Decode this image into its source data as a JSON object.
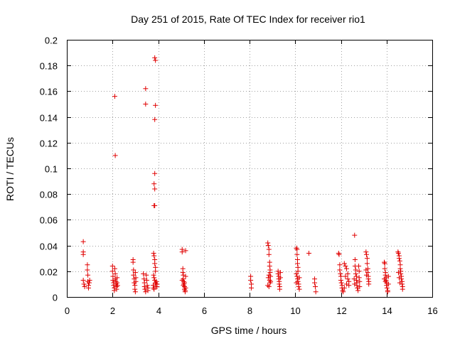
{
  "chart_data": {
    "type": "scatter",
    "title": "Day 251 of 2015, Rate Of TEC Index for receiver rio1",
    "xlabel": "GPS time / hours",
    "ylabel": "ROTI / TECUs",
    "xlim": [
      0,
      16
    ],
    "ylim": [
      0,
      0.2
    ],
    "xticks": [
      0,
      2,
      4,
      6,
      8,
      10,
      12,
      14,
      16
    ],
    "yticks": [
      0,
      0.02,
      0.04,
      0.06,
      0.08,
      0.1,
      0.12,
      0.14,
      0.16,
      0.18,
      0.2
    ],
    "xtick_labels": [
      "0",
      "2",
      "4",
      "6",
      "8",
      "10",
      "12",
      "14",
      "16"
    ],
    "ytick_labels": [
      "0",
      "0.02",
      "0.04",
      "0.06",
      "0.08",
      "0.1",
      "0.12",
      "0.14",
      "0.16",
      "0.18",
      "0.2"
    ],
    "grid": true,
    "marker": "+",
    "color": "#e00000",
    "series": [
      {
        "name": "rio1",
        "points": [
          [
            0.72,
            0.043
          ],
          [
            0.72,
            0.035
          ],
          [
            0.72,
            0.033
          ],
          [
            0.72,
            0.013
          ],
          [
            0.75,
            0.01
          ],
          [
            0.78,
            0.008
          ],
          [
            0.9,
            0.025
          ],
          [
            0.9,
            0.021
          ],
          [
            0.92,
            0.017
          ],
          [
            0.92,
            0.012
          ],
          [
            0.95,
            0.009
          ],
          [
            0.95,
            0.007
          ],
          [
            0.98,
            0.011
          ],
          [
            1.0,
            0.013
          ],
          [
            2.1,
            0.156
          ],
          [
            2.12,
            0.11
          ],
          [
            2.0,
            0.024
          ],
          [
            2.0,
            0.02
          ],
          [
            2.02,
            0.016
          ],
          [
            2.02,
            0.013
          ],
          [
            2.05,
            0.011
          ],
          [
            2.05,
            0.009
          ],
          [
            2.08,
            0.007
          ],
          [
            2.08,
            0.005
          ],
          [
            2.1,
            0.022
          ],
          [
            2.12,
            0.018
          ],
          [
            2.12,
            0.014
          ],
          [
            2.15,
            0.012
          ],
          [
            2.15,
            0.01
          ],
          [
            2.18,
            0.008
          ],
          [
            2.18,
            0.006
          ],
          [
            2.2,
            0.015
          ],
          [
            2.2,
            0.011
          ],
          [
            2.22,
            0.009
          ],
          [
            2.9,
            0.029
          ],
          [
            2.9,
            0.027
          ],
          [
            2.92,
            0.021
          ],
          [
            2.92,
            0.017
          ],
          [
            2.95,
            0.014
          ],
          [
            2.95,
            0.011
          ],
          [
            2.98,
            0.009
          ],
          [
            2.98,
            0.006
          ],
          [
            3.0,
            0.004
          ],
          [
            3.0,
            0.019
          ],
          [
            3.02,
            0.015
          ],
          [
            3.02,
            0.012
          ],
          [
            3.45,
            0.162
          ],
          [
            3.45,
            0.15
          ],
          [
            3.35,
            0.018
          ],
          [
            3.38,
            0.014
          ],
          [
            3.4,
            0.011
          ],
          [
            3.4,
            0.008
          ],
          [
            3.42,
            0.006
          ],
          [
            3.45,
            0.004
          ],
          [
            3.48,
            0.017
          ],
          [
            3.5,
            0.013
          ],
          [
            3.52,
            0.009
          ],
          [
            3.55,
            0.007
          ],
          [
            3.55,
            0.005
          ],
          [
            3.85,
            0.186
          ],
          [
            3.88,
            0.184
          ],
          [
            3.88,
            0.149
          ],
          [
            3.85,
            0.138
          ],
          [
            3.85,
            0.096
          ],
          [
            3.82,
            0.088
          ],
          [
            3.85,
            0.084
          ],
          [
            3.82,
            0.071
          ],
          [
            3.85,
            0.071
          ],
          [
            3.8,
            0.034
          ],
          [
            3.82,
            0.032
          ],
          [
            3.85,
            0.029
          ],
          [
            3.85,
            0.026
          ],
          [
            3.88,
            0.023
          ],
          [
            3.88,
            0.02
          ],
          [
            3.8,
            0.017
          ],
          [
            3.82,
            0.015
          ],
          [
            3.85,
            0.013
          ],
          [
            3.88,
            0.011
          ],
          [
            3.9,
            0.01
          ],
          [
            3.9,
            0.008
          ],
          [
            3.78,
            0.009
          ],
          [
            3.8,
            0.007
          ],
          [
            3.82,
            0.006
          ],
          [
            3.92,
            0.012
          ],
          [
            3.95,
            0.01
          ],
          [
            3.95,
            0.008
          ],
          [
            5.05,
            0.037
          ],
          [
            5.05,
            0.035
          ],
          [
            5.08,
            0.022
          ],
          [
            5.08,
            0.019
          ],
          [
            5.1,
            0.017
          ],
          [
            5.1,
            0.014
          ],
          [
            5.12,
            0.012
          ],
          [
            5.12,
            0.01
          ],
          [
            5.15,
            0.008
          ],
          [
            5.15,
            0.006
          ],
          [
            5.18,
            0.005
          ],
          [
            5.18,
            0.004
          ],
          [
            5.2,
            0.036
          ],
          [
            5.2,
            0.016
          ],
          [
            5.05,
            0.013
          ],
          [
            5.1,
            0.009
          ],
          [
            5.15,
            0.011
          ],
          [
            5.2,
            0.007
          ],
          [
            8.05,
            0.016
          ],
          [
            8.05,
            0.013
          ],
          [
            8.08,
            0.01
          ],
          [
            8.08,
            0.007
          ],
          [
            8.8,
            0.042
          ],
          [
            8.82,
            0.04
          ],
          [
            8.85,
            0.037
          ],
          [
            8.85,
            0.033
          ],
          [
            8.88,
            0.027
          ],
          [
            8.88,
            0.024
          ],
          [
            8.9,
            0.021
          ],
          [
            8.9,
            0.019
          ],
          [
            8.85,
            0.017
          ],
          [
            8.82,
            0.015
          ],
          [
            8.88,
            0.013
          ],
          [
            8.9,
            0.011
          ],
          [
            8.8,
            0.009
          ],
          [
            8.85,
            0.008
          ],
          [
            8.92,
            0.016
          ],
          [
            8.92,
            0.012
          ],
          [
            9.25,
            0.02
          ],
          [
            9.25,
            0.018
          ],
          [
            9.28,
            0.016
          ],
          [
            9.28,
            0.014
          ],
          [
            9.3,
            0.012
          ],
          [
            9.3,
            0.01
          ],
          [
            9.32,
            0.008
          ],
          [
            9.32,
            0.006
          ],
          [
            9.35,
            0.019
          ],
          [
            9.35,
            0.015
          ],
          [
            10.05,
            0.038
          ],
          [
            10.08,
            0.037
          ],
          [
            10.08,
            0.033
          ],
          [
            10.1,
            0.029
          ],
          [
            10.1,
            0.026
          ],
          [
            10.12,
            0.023
          ],
          [
            10.12,
            0.02
          ],
          [
            10.05,
            0.018
          ],
          [
            10.08,
            0.016
          ],
          [
            10.1,
            0.014
          ],
          [
            10.12,
            0.012
          ],
          [
            10.15,
            0.01
          ],
          [
            10.15,
            0.008
          ],
          [
            10.18,
            0.006
          ],
          [
            10.05,
            0.011
          ],
          [
            10.18,
            0.015
          ],
          [
            10.6,
            0.034
          ],
          [
            10.85,
            0.014
          ],
          [
            10.85,
            0.011
          ],
          [
            10.88,
            0.008
          ],
          [
            10.9,
            0.004
          ],
          [
            11.9,
            0.034
          ],
          [
            11.92,
            0.033
          ],
          [
            11.95,
            0.025
          ],
          [
            11.95,
            0.021
          ],
          [
            11.98,
            0.018
          ],
          [
            12.0,
            0.016
          ],
          [
            12.0,
            0.013
          ],
          [
            12.02,
            0.011
          ],
          [
            12.05,
            0.009
          ],
          [
            12.05,
            0.007
          ],
          [
            12.08,
            0.005
          ],
          [
            12.1,
            0.004
          ],
          [
            12.15,
            0.026
          ],
          [
            12.2,
            0.024
          ],
          [
            12.25,
            0.022
          ],
          [
            12.3,
            0.018
          ],
          [
            12.3,
            0.014
          ],
          [
            12.35,
            0.012
          ],
          [
            12.35,
            0.009
          ],
          [
            12.2,
            0.016
          ],
          [
            12.25,
            0.01
          ],
          [
            12.15,
            0.007
          ],
          [
            12.6,
            0.048
          ],
          [
            12.62,
            0.029
          ],
          [
            12.62,
            0.024
          ],
          [
            12.65,
            0.021
          ],
          [
            12.65,
            0.018
          ],
          [
            12.68,
            0.016
          ],
          [
            12.68,
            0.013
          ],
          [
            12.7,
            0.011
          ],
          [
            12.7,
            0.009
          ],
          [
            12.72,
            0.007
          ],
          [
            12.75,
            0.005
          ],
          [
            12.78,
            0.024
          ],
          [
            12.8,
            0.02
          ],
          [
            12.8,
            0.015
          ],
          [
            12.82,
            0.012
          ],
          [
            12.82,
            0.008
          ],
          [
            12.6,
            0.01
          ],
          [
            12.58,
            0.014
          ],
          [
            13.1,
            0.035
          ],
          [
            13.12,
            0.033
          ],
          [
            13.15,
            0.03
          ],
          [
            13.15,
            0.026
          ],
          [
            13.18,
            0.022
          ],
          [
            13.18,
            0.019
          ],
          [
            13.2,
            0.016
          ],
          [
            13.2,
            0.014
          ],
          [
            13.22,
            0.012
          ],
          [
            13.22,
            0.01
          ],
          [
            13.1,
            0.021
          ],
          [
            13.12,
            0.017
          ],
          [
            13.9,
            0.027
          ],
          [
            13.92,
            0.026
          ],
          [
            13.92,
            0.022
          ],
          [
            13.95,
            0.019
          ],
          [
            13.95,
            0.017
          ],
          [
            13.98,
            0.015
          ],
          [
            13.98,
            0.013
          ],
          [
            14.0,
            0.011
          ],
          [
            14.0,
            0.009
          ],
          [
            14.02,
            0.007
          ],
          [
            14.05,
            0.005
          ],
          [
            14.05,
            0.004
          ],
          [
            13.9,
            0.014
          ],
          [
            13.95,
            0.012
          ],
          [
            14.08,
            0.016
          ],
          [
            14.08,
            0.01
          ],
          [
            14.5,
            0.035
          ],
          [
            14.52,
            0.034
          ],
          [
            14.55,
            0.032
          ],
          [
            14.55,
            0.03
          ],
          [
            14.58,
            0.028
          ],
          [
            14.6,
            0.025
          ],
          [
            14.6,
            0.022
          ],
          [
            14.62,
            0.02
          ],
          [
            14.62,
            0.018
          ],
          [
            14.65,
            0.016
          ],
          [
            14.65,
            0.014
          ],
          [
            14.68,
            0.012
          ],
          [
            14.68,
            0.01
          ],
          [
            14.7,
            0.008
          ],
          [
            14.7,
            0.006
          ],
          [
            14.52,
            0.019
          ],
          [
            14.55,
            0.015
          ],
          [
            14.58,
            0.011
          ]
        ]
      }
    ]
  }
}
